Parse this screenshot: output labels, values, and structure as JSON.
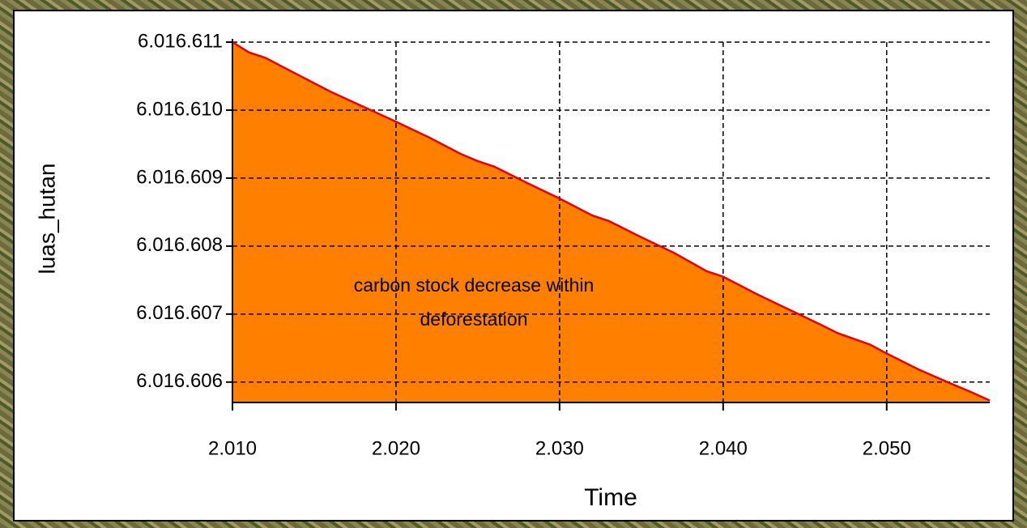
{
  "chart_data": {
    "type": "area",
    "x_label": "Time",
    "y_label": "luas_hutan",
    "annotation": [
      "carbon stock  decrease within",
      "deforestation"
    ],
    "series": [
      {
        "name": "luas_hutan",
        "color": "#e8000b",
        "fill": "#ff8000",
        "x": [
          2010,
          2011,
          2012,
          2014,
          2016,
          2018,
          2020,
          2022,
          2024,
          2025,
          2026,
          2028,
          2030,
          2032,
          2033,
          2035,
          2037,
          2039,
          2040,
          2042,
          2044,
          2046,
          2047,
          2049,
          2050,
          2052,
          2054,
          2055,
          2056.3
        ],
        "values": [
          6016611.0,
          6016610.85,
          6016610.77,
          6016610.52,
          6016610.27,
          6016610.05,
          6016609.83,
          6016609.6,
          6016609.35,
          6016609.25,
          6016609.17,
          6016608.93,
          6016608.7,
          6016608.45,
          6016608.37,
          6016608.13,
          6016607.9,
          6016607.63,
          6016607.55,
          6016607.3,
          6016607.07,
          6016606.84,
          6016606.72,
          6016606.55,
          6016606.42,
          6016606.18,
          6016605.97,
          6016605.87,
          6016605.73
        ]
      }
    ],
    "xlim": [
      2010,
      2056.3
    ],
    "ylim": [
      6016605.7,
      6016611
    ],
    "xticks": [
      {
        "value": 2010,
        "label": "2.010"
      },
      {
        "value": 2020,
        "label": "2.020"
      },
      {
        "value": 2030,
        "label": "2.030"
      },
      {
        "value": 2040,
        "label": "2.040"
      },
      {
        "value": 2050,
        "label": "2.050"
      }
    ],
    "yticks": [
      {
        "value": 6016606,
        "label": "6.016.606"
      },
      {
        "value": 6016607,
        "label": "6.016.607"
      },
      {
        "value": 6016608,
        "label": "6.016.608"
      },
      {
        "value": 6016609,
        "label": "6.016.609"
      },
      {
        "value": 6016610,
        "label": "6.016.610"
      },
      {
        "value": 6016611,
        "label": "6.016.611"
      }
    ],
    "grid": true
  }
}
